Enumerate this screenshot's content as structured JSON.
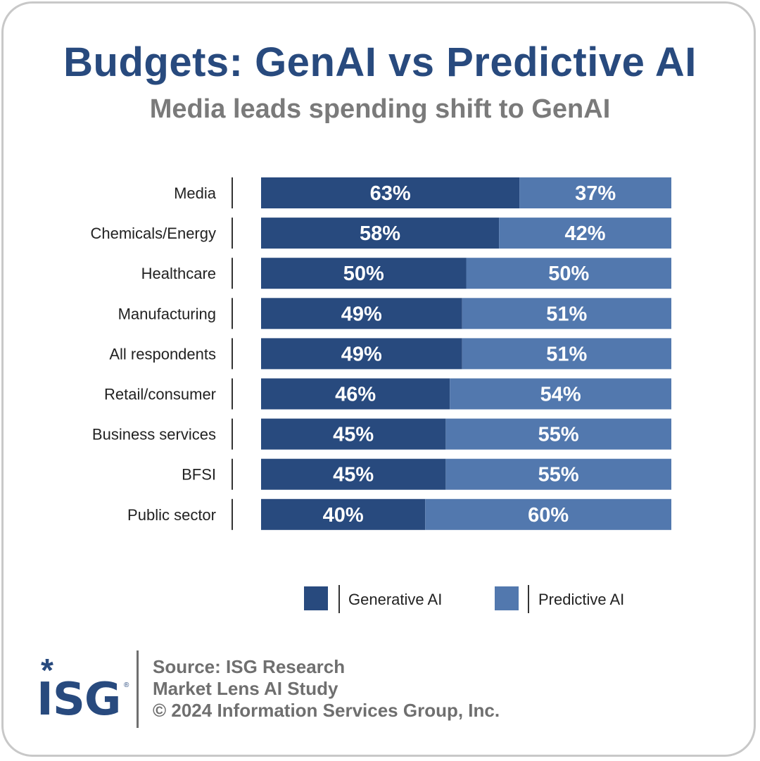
{
  "title": "Budgets: GenAI vs Predictive AI",
  "subtitle": "Media leads spending shift to GenAI",
  "colors": {
    "generative": "#284a7e",
    "predictive": "#5278ae",
    "title": "#284a7e",
    "subtitle": "#7a7a7a"
  },
  "chart_data": {
    "type": "bar",
    "orientation": "horizontal",
    "stacked": true,
    "normalized_to": 100,
    "categories": [
      "Media",
      "Chemicals/Energy",
      "Healthcare",
      "Manufacturing",
      "All respondents",
      "Retail/consumer",
      "Business services",
      "BFSI",
      "Public sector"
    ],
    "series": [
      {
        "name": "Generative AI",
        "values": [
          63,
          58,
          50,
          49,
          49,
          46,
          45,
          45,
          40
        ],
        "labels": [
          "63%",
          "58%",
          "50%",
          "49%",
          "49%",
          "46%",
          "45%",
          "45%",
          "40%"
        ]
      },
      {
        "name": "Predictive AI",
        "values": [
          37,
          42,
          50,
          51,
          51,
          54,
          55,
          55,
          60
        ],
        "labels": [
          "37%",
          "42%",
          "50%",
          "51%",
          "51%",
          "54%",
          "55%",
          "55%",
          "60%"
        ]
      }
    ],
    "title": "Budgets: GenAI vs Predictive AI",
    "subtitle": "Media leads spending shift to GenAI",
    "legend": "bottom",
    "grid": false
  },
  "legend": {
    "generative": "Generative AI",
    "predictive": "Predictive AI"
  },
  "logo": {
    "text": "ISG",
    "reg": "®"
  },
  "source": {
    "line1": "Source: ISG Research",
    "line2": "Market Lens AI Study",
    "line3": "© 2024 Information Services Group, Inc."
  }
}
